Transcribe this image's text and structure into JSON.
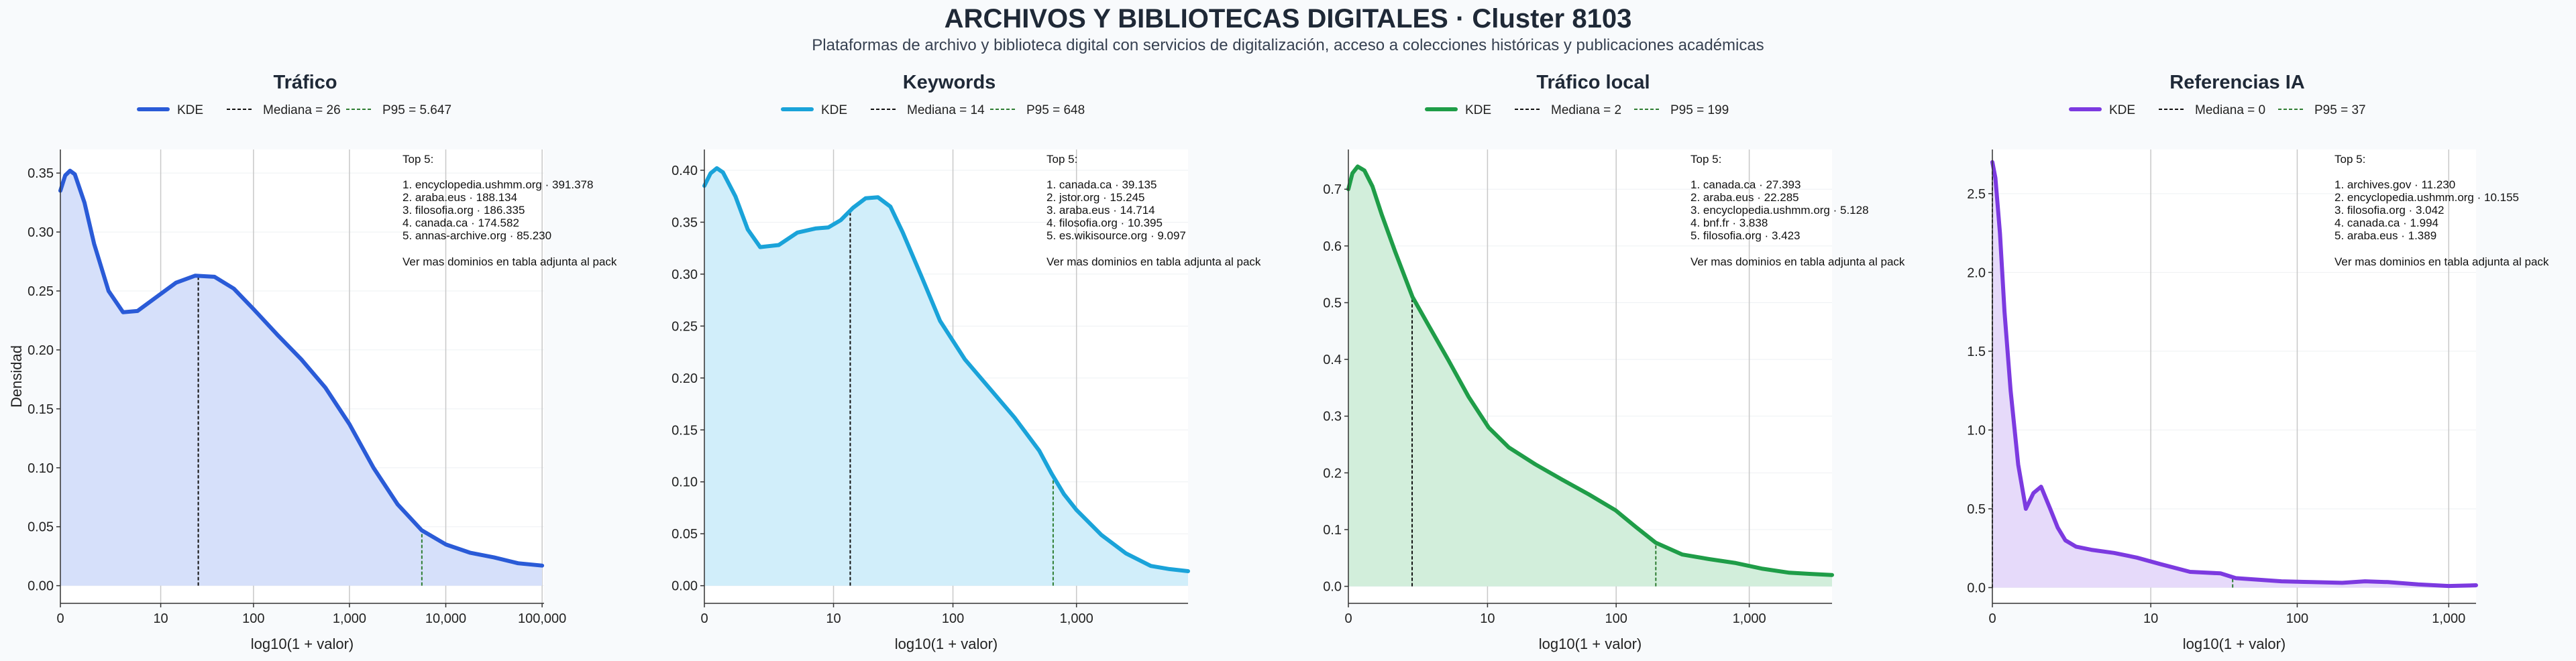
{
  "header": {
    "title": "ARCHIVOS Y BIBLIOTECAS DIGITALES · Cluster 8103",
    "subtitle": "Plataformas de archivo y biblioteca digital con servicios de digitalización, acceso a colecciones históricas y publicaciones académicas"
  },
  "chart_data": [
    {
      "type": "area",
      "title": "Tráfico",
      "color": "#2a5bd7",
      "fill": "#d6e0fa",
      "median_color": "#111111",
      "p95_color": "#2e7d32",
      "xlabel": "log10(1 + valor)",
      "ylabel": "Densidad",
      "x_scale": "log10(1+x)",
      "xlim": [
        0,
        5.02
      ],
      "ylim": [
        -0.015,
        0.37
      ],
      "x_ticks": [
        0,
        10,
        100,
        1000,
        10000,
        100000
      ],
      "x_tick_labels": [
        "0",
        "10",
        "100",
        "1,000",
        "10,000",
        "100,000"
      ],
      "y_ticks": [
        0,
        0.05,
        0.1,
        0.15,
        0.2,
        0.25,
        0.3,
        0.35
      ],
      "y_tick_labels": [
        "0.00",
        "0.05",
        "0.10",
        "0.15",
        "0.20",
        "0.25",
        "0.30",
        "0.35"
      ],
      "series": [
        {
          "name": "KDE",
          "x": [
            0,
            0.05,
            0.1,
            0.15,
            0.25,
            0.35,
            0.5,
            0.65,
            0.8,
            1.0,
            1.2,
            1.4,
            1.6,
            1.8,
            2.0,
            2.25,
            2.5,
            2.75,
            3.0,
            3.25,
            3.5,
            3.75,
            4.0,
            4.25,
            4.5,
            4.75,
            5.0
          ],
          "y": [
            0.335,
            0.348,
            0.352,
            0.349,
            0.325,
            0.29,
            0.25,
            0.232,
            0.233,
            0.245,
            0.257,
            0.263,
            0.262,
            0.252,
            0.235,
            0.213,
            0.192,
            0.168,
            0.137,
            0.1,
            0.069,
            0.047,
            0.035,
            0.028,
            0.024,
            0.019,
            0.017
          ]
        }
      ],
      "median": {
        "value": 26,
        "label": "Mediana = 26"
      },
      "p95": {
        "value": 5647,
        "label": "P95 = 5.647"
      },
      "legend": {
        "kde": "KDE",
        "placement": "top"
      },
      "annotation": {
        "heading": "Top 5:",
        "lines": [
          "1. encyclopedia.ushmm.org · 391.378",
          "2. araba.eus · 188.134",
          "3. filosofia.org · 186.335",
          "4. canada.ca · 174.582",
          "5. annas-archive.org · 85.230"
        ],
        "footer": "Ver mas dominios en tabla adjunta al pack"
      }
    },
    {
      "type": "area",
      "title": "Keywords",
      "color": "#1aa3d9",
      "fill": "#d1eefa",
      "median_color": "#111111",
      "p95_color": "#2e7d32",
      "xlabel": "log10(1 + valor)",
      "ylabel": "",
      "x_scale": "log10(1+x)",
      "xlim": [
        0,
        3.9
      ],
      "ylim": [
        -0.017,
        0.42
      ],
      "x_ticks": [
        0,
        10,
        100,
        1000
      ],
      "x_tick_labels": [
        "0",
        "10",
        "100",
        "1,000"
      ],
      "y_ticks": [
        0,
        0.05,
        0.1,
        0.15,
        0.2,
        0.25,
        0.3,
        0.35,
        0.4
      ],
      "y_tick_labels": [
        "0.00",
        "0.05",
        "0.10",
        "0.15",
        "0.20",
        "0.25",
        "0.30",
        "0.35",
        "0.40"
      ],
      "series": [
        {
          "name": "KDE",
          "x": [
            0,
            0.05,
            0.1,
            0.15,
            0.25,
            0.35,
            0.45,
            0.6,
            0.75,
            0.9,
            1.0,
            1.1,
            1.2,
            1.3,
            1.4,
            1.5,
            1.6,
            1.75,
            1.9,
            2.1,
            2.3,
            2.5,
            2.7,
            2.8,
            2.9,
            3.0,
            3.2,
            3.4,
            3.6,
            3.75,
            3.9
          ],
          "y": [
            0.385,
            0.397,
            0.402,
            0.398,
            0.375,
            0.343,
            0.326,
            0.328,
            0.34,
            0.344,
            0.345,
            0.352,
            0.364,
            0.373,
            0.374,
            0.365,
            0.34,
            0.298,
            0.255,
            0.218,
            0.19,
            0.162,
            0.13,
            0.108,
            0.088,
            0.073,
            0.049,
            0.031,
            0.019,
            0.016,
            0.014
          ]
        }
      ],
      "median": {
        "value": 14,
        "label": "Mediana = 14"
      },
      "p95": {
        "value": 648,
        "label": "P95 = 648"
      },
      "legend": {
        "kde": "KDE",
        "placement": "top"
      },
      "annotation": {
        "heading": "Top 5:",
        "lines": [
          "1. canada.ca · 39.135",
          "2. jstor.org · 15.245",
          "3. araba.eus · 14.714",
          "4. filosofia.org · 10.395",
          "5. es.wikisource.org · 9.097"
        ],
        "footer": "Ver mas dominios en tabla adjunta al pack"
      }
    },
    {
      "type": "area",
      "title": "Tráfico local",
      "color": "#1f9d48",
      "fill": "#d2eedb",
      "median_color": "#111111",
      "p95_color": "#2e7d32",
      "xlabel": "log10(1 + valor)",
      "ylabel": "",
      "x_scale": "log10(1+x)",
      "xlim": [
        0,
        3.62
      ],
      "ylim": [
        -0.03,
        0.77
      ],
      "x_ticks": [
        0,
        10,
        100,
        1000
      ],
      "x_tick_labels": [
        "0",
        "10",
        "100",
        "1,000"
      ],
      "y_ticks": [
        0,
        0.1,
        0.2,
        0.3,
        0.4,
        0.5,
        0.6,
        0.7
      ],
      "y_tick_labels": [
        "0.0",
        "0.1",
        "0.2",
        "0.3",
        "0.4",
        "0.5",
        "0.6",
        "0.7"
      ],
      "series": [
        {
          "name": "KDE",
          "x": [
            0,
            0.03,
            0.07,
            0.12,
            0.18,
            0.25,
            0.35,
            0.48,
            0.6,
            0.75,
            0.9,
            1.05,
            1.2,
            1.4,
            1.6,
            1.8,
            2.0,
            2.15,
            2.3,
            2.5,
            2.7,
            2.9,
            3.1,
            3.3,
            3.45,
            3.62
          ],
          "y": [
            0.7,
            0.728,
            0.74,
            0.733,
            0.705,
            0.655,
            0.59,
            0.51,
            0.46,
            0.398,
            0.334,
            0.28,
            0.245,
            0.215,
            0.188,
            0.162,
            0.134,
            0.105,
            0.077,
            0.056,
            0.048,
            0.041,
            0.031,
            0.024,
            0.022,
            0.02
          ]
        }
      ],
      "median": {
        "value": 2,
        "label": "Mediana = 2"
      },
      "p95": {
        "value": 199,
        "label": "P95 = 199"
      },
      "legend": {
        "kde": "KDE",
        "placement": "top"
      },
      "annotation": {
        "heading": "Top 5:",
        "lines": [
          "1. canada.ca · 27.393",
          "2. araba.eus · 22.285",
          "3. encyclopedia.ushmm.org · 5.128",
          "4. bnf.fr · 3.838",
          "5. filosofia.org · 3.423"
        ],
        "footer": "Ver mas dominios en tabla adjunta al pack"
      }
    },
    {
      "type": "area",
      "title": "Referencias IA",
      "color": "#7c3ae0",
      "fill": "#e6dafa",
      "median_color": "#111111",
      "p95_color": "#2e7d32",
      "xlabel": "log10(1 + valor)",
      "ylabel": "",
      "x_scale": "log10(1+x)",
      "xlim": [
        0,
        3.18
      ],
      "ylim": [
        -0.1,
        2.78
      ],
      "x_ticks": [
        0,
        10,
        100,
        1000
      ],
      "x_tick_labels": [
        "0",
        "10",
        "100",
        "1,000"
      ],
      "y_ticks": [
        0,
        0.5,
        1,
        1.5,
        2,
        2.5
      ],
      "y_tick_labels": [
        "0.0",
        "0.5",
        "1.0",
        "1.5",
        "2.0",
        "2.5"
      ],
      "series": [
        {
          "name": "KDE",
          "x": [
            0,
            0.02,
            0.05,
            0.08,
            0.12,
            0.17,
            0.22,
            0.27,
            0.32,
            0.38,
            0.43,
            0.48,
            0.55,
            0.65,
            0.8,
            0.95,
            1.1,
            1.3,
            1.5,
            1.6,
            1.75,
            1.9,
            2.1,
            2.3,
            2.45,
            2.6,
            2.8,
            3.0,
            3.18
          ],
          "y": [
            2.7,
            2.6,
            2.25,
            1.75,
            1.25,
            0.78,
            0.5,
            0.6,
            0.64,
            0.5,
            0.38,
            0.3,
            0.26,
            0.24,
            0.22,
            0.19,
            0.15,
            0.1,
            0.09,
            0.06,
            0.05,
            0.04,
            0.035,
            0.03,
            0.04,
            0.035,
            0.02,
            0.01,
            0.015
          ]
        }
      ],
      "median": {
        "value": 0,
        "label": "Mediana = 0"
      },
      "p95": {
        "value": 37,
        "label": "P95 = 37"
      },
      "legend": {
        "kde": "KDE",
        "placement": "top"
      },
      "annotation": {
        "heading": "Top 5:",
        "lines": [
          "1. archives.gov · 11.230",
          "2. encyclopedia.ushmm.org · 10.155",
          "3. filosofia.org · 3.042",
          "4. canada.ca · 1.994",
          "5. araba.eus · 1.389"
        ],
        "footer": "Ver mas dominios en tabla adjunta al pack"
      }
    }
  ]
}
